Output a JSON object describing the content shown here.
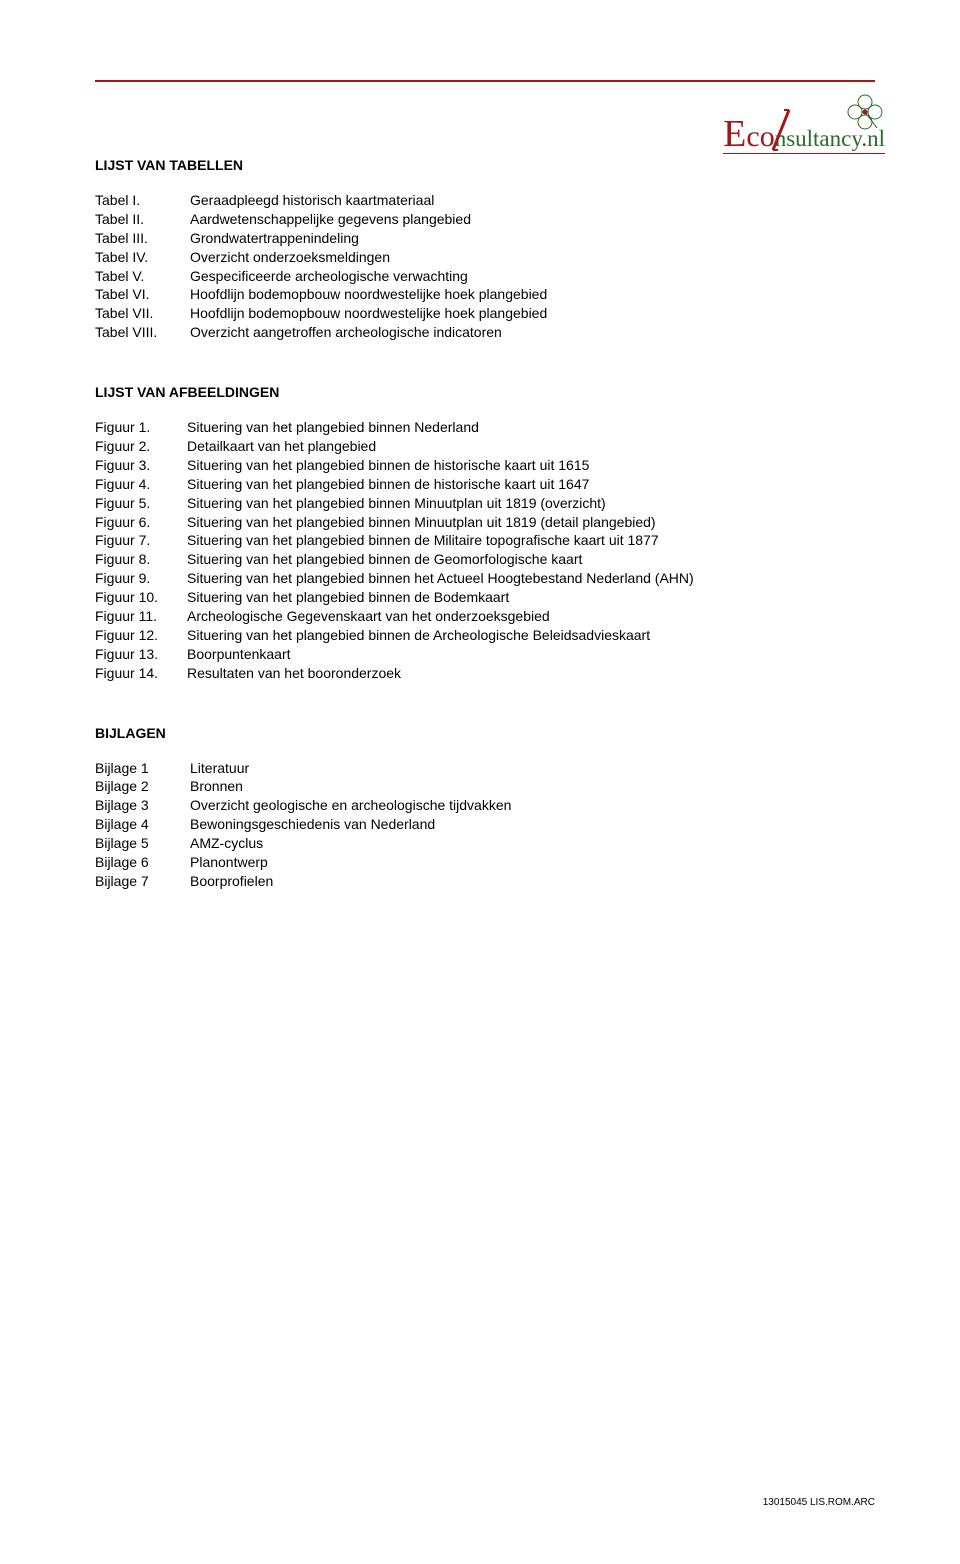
{
  "logo": {
    "eco_part1": "E",
    "eco_part2": "co",
    "nsult": "nsultancy",
    "nl": "nl",
    "color_primary": "#a01818",
    "color_secondary": "#2a6b2a"
  },
  "sections": {
    "tabellen": {
      "title": "LIJST VAN TABELLEN",
      "items": [
        {
          "key": "Tabel I.",
          "val": "Geraadpleegd historisch kaartmateriaal"
        },
        {
          "key": "Tabel II.",
          "val": "Aardwetenschappelijke gegevens plangebied"
        },
        {
          "key": "Tabel III.",
          "val": "Grondwatertrappenindeling"
        },
        {
          "key": "Tabel IV.",
          "val": "Overzicht onderzoeksmeldingen"
        },
        {
          "key": "Tabel V.",
          "val": "Gespecificeerde archeologische verwachting"
        },
        {
          "key": "Tabel VI.",
          "val": "Hoofdlijn bodemopbouw noordwestelijke hoek plangebied"
        },
        {
          "key": "Tabel VII.",
          "val": "Hoofdlijn bodemopbouw noordwestelijke hoek plangebied"
        },
        {
          "key": "Tabel VIII.",
          "val": "Overzicht aangetroffen archeologische indicatoren"
        }
      ]
    },
    "afbeeldingen": {
      "title": "LIJST VAN AFBEELDINGEN",
      "items": [
        {
          "key": "Figuur 1.",
          "val": "Situering van het plangebied binnen Nederland"
        },
        {
          "key": "Figuur 2.",
          "val": "Detailkaart van het plangebied"
        },
        {
          "key": "Figuur 3.",
          "val": "Situering van het plangebied binnen de historische kaart uit 1615"
        },
        {
          "key": "Figuur 4.",
          "val": "Situering van het plangebied binnen de historische kaart uit 1647"
        },
        {
          "key": "Figuur 5.",
          "val": "Situering van het plangebied binnen Minuutplan uit 1819 (overzicht)"
        },
        {
          "key": "Figuur 6.",
          "val": "Situering van het plangebied binnen Minuutplan uit 1819 (detail plangebied)"
        },
        {
          "key": "Figuur 7.",
          "val": "Situering van het plangebied binnen de Militaire topografische kaart uit 1877"
        },
        {
          "key": "Figuur 8.",
          "val": "Situering van het plangebied binnen de Geomorfologische kaart"
        },
        {
          "key": "Figuur 9.",
          "val": "Situering van het plangebied binnen het Actueel Hoogtebestand Nederland (AHN)"
        },
        {
          "key": "Figuur 10.",
          "val": " Situering van het plangebied binnen de Bodemkaart"
        },
        {
          "key": "Figuur 11.",
          "val": "Archeologische Gegevenskaart van het onderzoeksgebied"
        },
        {
          "key": "Figuur 12.",
          "val": "Situering van het plangebied binnen de Archeologische Beleidsadvieskaart"
        },
        {
          "key": "Figuur 13.",
          "val": "Boorpuntenkaart"
        },
        {
          "key": "Figuur 14.",
          "val": "Resultaten van het booronderzoek"
        }
      ]
    },
    "bijlagen": {
      "title": "BIJLAGEN",
      "items": [
        {
          "key": "Bijlage 1",
          "val": "Literatuur"
        },
        {
          "key": "Bijlage 2",
          "val": "Bronnen"
        },
        {
          "key": "Bijlage 3",
          "val": "Overzicht geologische en archeologische tijdvakken"
        },
        {
          "key": "Bijlage 4",
          "val": "Bewoningsgeschiedenis van Nederland"
        },
        {
          "key": "Bijlage 5",
          "val": "AMZ-cyclus"
        },
        {
          "key": "Bijlage 6",
          "val": "Planontwerp"
        },
        {
          "key": "Bijlage 7",
          "val": "Boorprofielen"
        }
      ]
    }
  },
  "footer": "13015045 LIS.ROM.ARC"
}
